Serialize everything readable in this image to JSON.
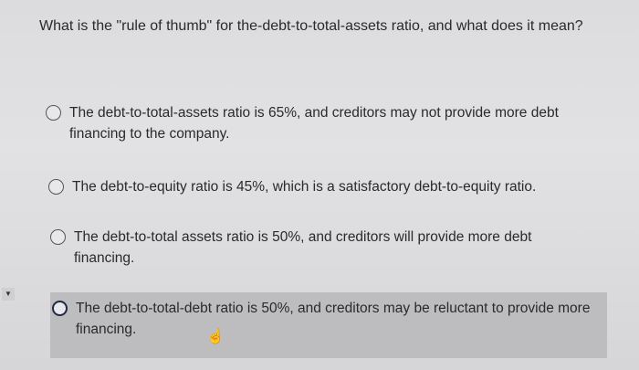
{
  "question": "What is the \"rule of thumb\" for the-debt-to-total-assets ratio, and what does it mean?",
  "options": [
    {
      "label": "The debt-to-total-assets ratio is 65%, and creditors may not provide more debt financing to the company.",
      "selected": false
    },
    {
      "label": "The debt-to-equity ratio is 45%, which is a satisfactory debt-to-equity ratio.",
      "selected": false
    },
    {
      "label": "The debt-to-total assets ratio is 50%, and creditors will provide more debt financing.",
      "selected": false
    },
    {
      "label": "The debt-to-total-debt ratio is 50%, and creditors may be reluctant to provide more financing.",
      "selected": false,
      "hovered": true
    }
  ],
  "icons": {
    "cursor": "hand-pointer-icon",
    "scroll": "scroll-down-arrow-icon"
  }
}
